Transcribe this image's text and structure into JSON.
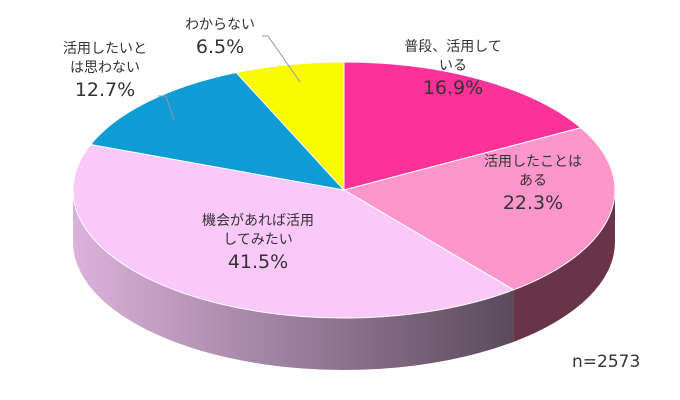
{
  "chart_data": {
    "type": "pie",
    "title": "",
    "style": "3d",
    "start": "12 o'clock, clockwise",
    "slices": [
      {
        "label": "普段、活用している",
        "label_lines": [
          "普段、活用して",
          "いる"
        ],
        "value": 16.9,
        "value_text": "16.9%",
        "color": "#fc3299",
        "side": "#a0205f"
      },
      {
        "label": "活用したことはある",
        "label_lines": [
          "活用したことは",
          "ある"
        ],
        "value": 22.3,
        "value_text": "22.3%",
        "color": "#fd97cb",
        "side": "#6a3448"
      },
      {
        "label": "機会があれば活用してみたい",
        "label_lines": [
          "機会があれば活用",
          "してみたい"
        ],
        "value": 41.5,
        "value_text": "41.5%",
        "color": "#fbc8fa",
        "side": "#8a6a8c"
      },
      {
        "label": "活用したいとは思わない",
        "label_lines": [
          "活用したいと",
          "は思わない"
        ],
        "value": 12.7,
        "value_text": "12.7%",
        "color": "#0f9bd3",
        "side": "#0a6a90"
      },
      {
        "label": "わからない",
        "label_lines": [
          "わからない"
        ],
        "value": 6.5,
        "value_text": "6.5%",
        "color": "#fafa00",
        "side": "#a0a000"
      }
    ],
    "note": "n=2573"
  }
}
